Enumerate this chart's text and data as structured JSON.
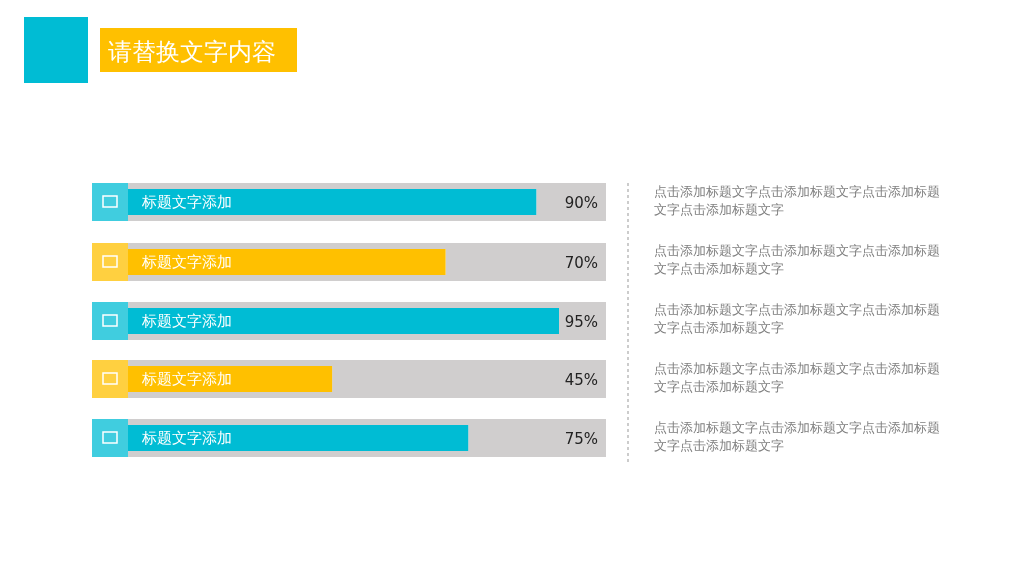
{
  "chart_data": {
    "type": "bar",
    "orientation": "horizontal",
    "title": "请替换文字内容",
    "categories": [
      "标题文字添加",
      "标题文字添加",
      "标题文字添加",
      "标题文字添加",
      "标题文字添加"
    ],
    "values": [
      90,
      70,
      95,
      45,
      75
    ],
    "colors": [
      "#00bcd4",
      "#ffc000",
      "#00bcd4",
      "#ffc000",
      "#00bcd4"
    ],
    "value_labels": [
      "90%",
      "70%",
      "95%",
      "45%",
      "75%"
    ],
    "annotations": [
      "点击添加标题文字点击添加标题文字点击添加标题文字点击添加标题文字",
      "点击添加标题文字点击添加标题文字点击添加标题文字点击添加标题文字",
      "点击添加标题文字点击添加标题文字点击添加标题文字点击添加标题文字",
      "点击添加标题文字点击添加标题文字点击添加标题文字点击添加标题文字",
      "点击添加标题文字点击添加标题文字点击添加标题文字点击添加标题文字"
    ]
  }
}
